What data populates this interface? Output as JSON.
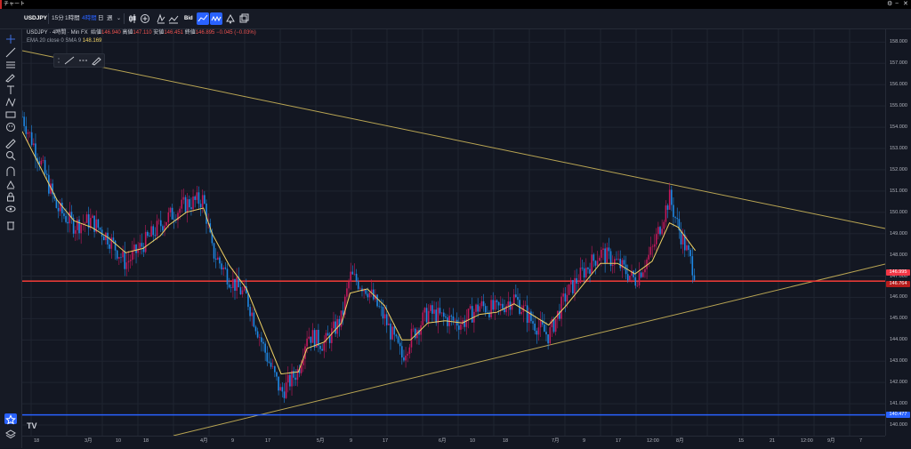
{
  "window": {
    "title": "チャート"
  },
  "toolbar": {
    "symbol": "USDJPY",
    "intervals": [
      "15分",
      "1時間",
      "4時間",
      "日",
      "週"
    ],
    "active_interval": "4時間",
    "bid_label": "Bid"
  },
  "legend": {
    "symbol": "USDJPY",
    "interval": "4時間",
    "source": "Min FX",
    "ohlc": [
      {
        "label": "始値",
        "value": "146.940"
      },
      {
        "label": "高値",
        "value": "147.110"
      },
      {
        "label": "安値",
        "value": "146.451"
      },
      {
        "label": "終値",
        "value": "146.895 −0.045 (−0.03%)"
      }
    ],
    "indicator_name": "EMA 20 close 0 SMA 9",
    "indicator_value": "148.169"
  },
  "price_axis": {
    "ticks": [
      "158.000",
      "157.000",
      "156.000",
      "155.000",
      "154.000",
      "153.000",
      "152.000",
      "151.000",
      "150.000",
      "149.000",
      "148.000",
      "147.000",
      "146.000",
      "145.000",
      "144.000",
      "143.000",
      "142.000",
      "141.000",
      "140.000",
      "139.000"
    ],
    "tags": [
      {
        "value": "146.995",
        "color": "#f23645"
      },
      {
        "value": "146.764",
        "color": "#b71c1c"
      },
      {
        "value": "140.477",
        "color": "#2962ff"
      }
    ]
  },
  "time_axis": {
    "ticks": [
      "18",
      "3月",
      "10",
      "18",
      "4月",
      "9",
      "17",
      "5月",
      "9",
      "17",
      "6月",
      "10",
      "18",
      "7月",
      "9",
      "17",
      "12:00",
      "8月",
      "15",
      "21",
      "12:00",
      "9月",
      "7"
    ]
  },
  "horizontal_lines": [
    {
      "price": 146.764,
      "color": "#e53935"
    },
    {
      "price": 140.477,
      "color": "#2962ff"
    }
  ],
  "colors": {
    "ema": "#f0d264",
    "candle_up": "#c2185b",
    "candle_down": "#1e88e5",
    "trend": "#b9a553"
  },
  "icons": {
    "left_toolbar": [
      "crosshair-icon",
      "trendline-icon",
      "fib-icon",
      "brush-icon",
      "text-icon",
      "pattern-icon",
      "measure-icon",
      "emoji-icon",
      "ruler-icon",
      "zoom-icon",
      "magnet-icon",
      "lock-draw-icon",
      "lock-icon",
      "eye-icon",
      "trash-icon"
    ],
    "bottom_left": [
      "star-icon",
      "layers-icon"
    ]
  },
  "chart_data": {
    "type": "line",
    "title": "",
    "xlabel": "",
    "ylabel": "",
    "ylim": [
      139.5,
      158.6
    ],
    "x_domain": [
      0,
      100
    ],
    "series": [
      {
        "name": "USDJPY",
        "x": [
          0,
          2,
          4,
          6,
          8,
          10,
          12,
          14,
          16,
          17,
          19,
          21,
          22,
          24,
          26,
          28,
          30,
          32,
          33,
          35,
          37,
          38,
          40,
          42,
          44,
          45,
          47,
          49,
          51,
          53,
          55,
          57,
          59,
          61,
          63,
          65,
          67,
          69,
          71,
          73,
          75,
          76,
          78
        ],
        "values": [
          154.5,
          152.5,
          150.2,
          149.4,
          149.6,
          148.8,
          147.6,
          148.5,
          149.4,
          149.8,
          150.4,
          150.6,
          148.2,
          146.9,
          146.0,
          143.6,
          141.5,
          142.6,
          144.3,
          143.8,
          145.0,
          147.0,
          146.4,
          145.0,
          143.2,
          144.1,
          145.3,
          145.0,
          144.8,
          145.6,
          145.4,
          146.0,
          144.9,
          144.2,
          146.1,
          147.2,
          148.1,
          147.6,
          146.8,
          148.2,
          150.7,
          149.3,
          147.1
        ]
      },
      {
        "name": "EMA 20",
        "x": [
          0,
          2,
          4,
          6,
          8,
          10,
          12,
          14,
          16,
          17,
          19,
          21,
          22,
          24,
          26,
          28,
          30,
          32,
          33,
          35,
          37,
          38,
          40,
          42,
          44,
          45,
          47,
          49,
          51,
          53,
          55,
          57,
          59,
          61,
          63,
          65,
          67,
          69,
          71,
          73,
          75,
          76,
          78
        ],
        "values": [
          153.8,
          152.2,
          150.6,
          149.6,
          149.3,
          148.8,
          148.1,
          148.3,
          148.9,
          149.4,
          150.0,
          150.2,
          149.0,
          147.5,
          146.4,
          144.4,
          142.4,
          142.5,
          143.6,
          143.9,
          144.8,
          146.2,
          146.4,
          145.6,
          144.0,
          144.0,
          144.8,
          144.9,
          144.8,
          145.2,
          145.3,
          145.7,
          145.2,
          144.7,
          145.6,
          146.6,
          147.6,
          147.6,
          147.1,
          147.7,
          149.5,
          149.3,
          148.2
        ]
      }
    ]
  }
}
